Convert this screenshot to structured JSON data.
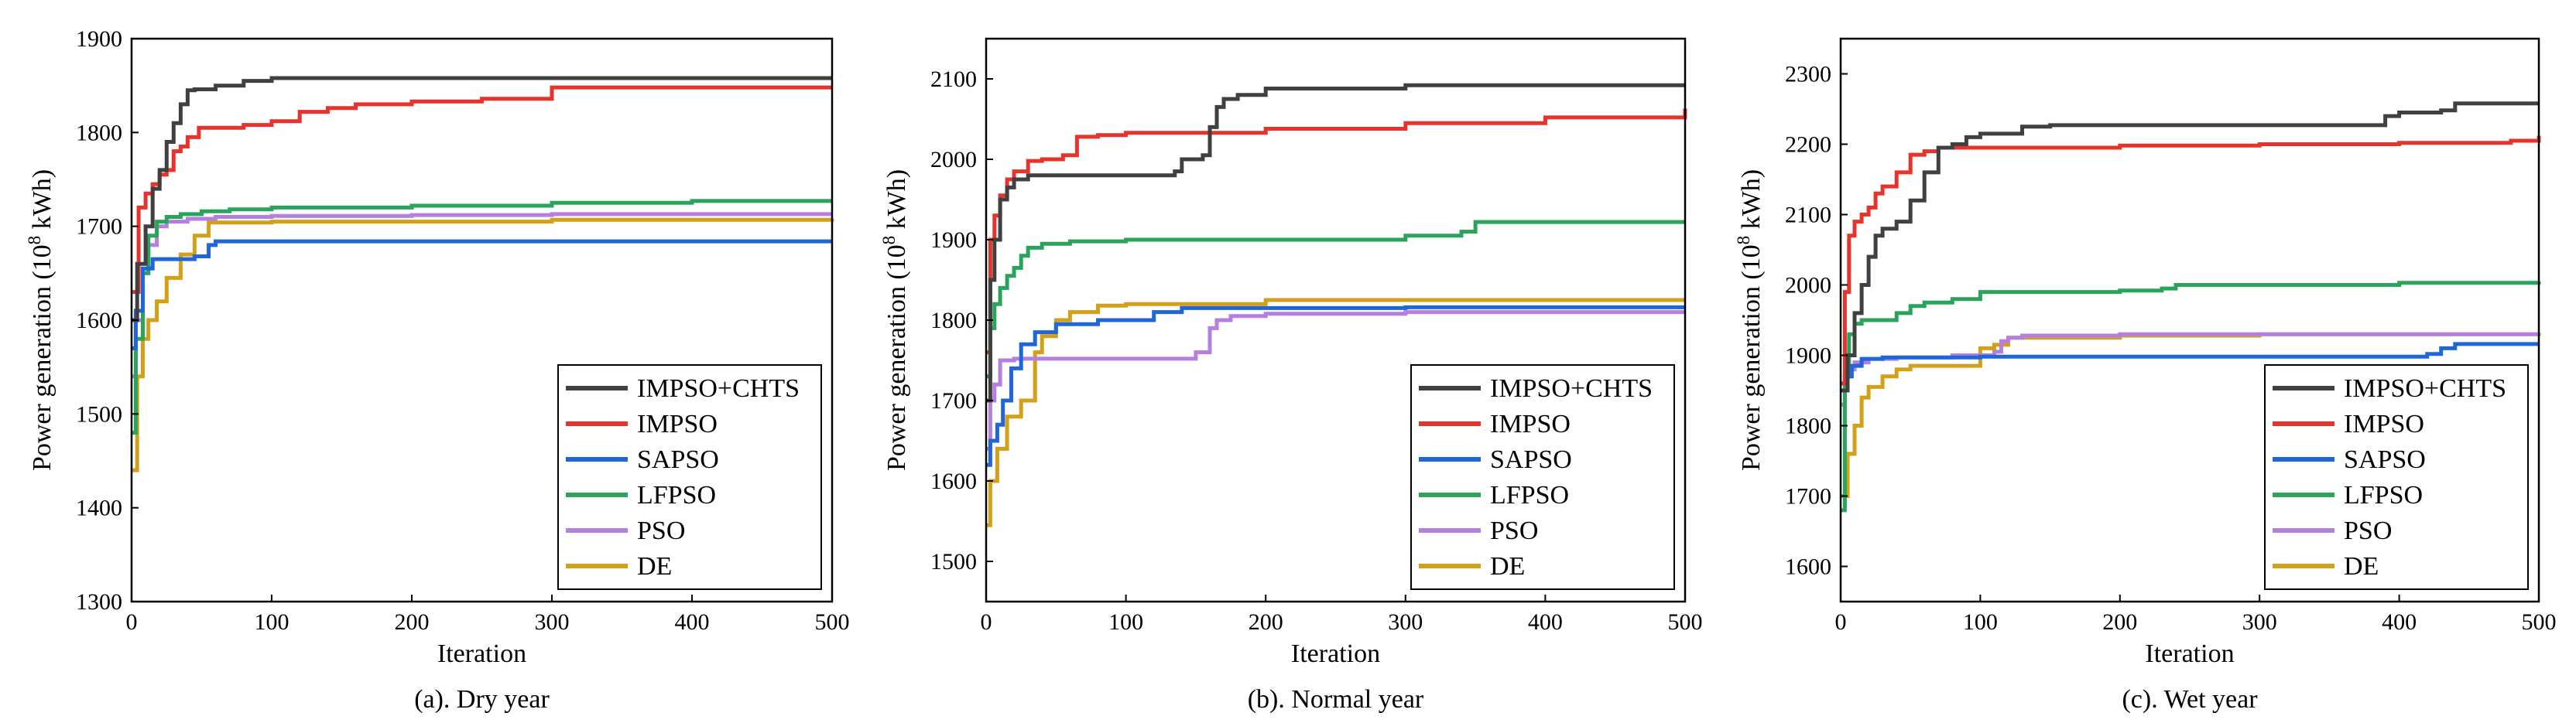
{
  "figure": {
    "colors": {
      "IMPSO+CHTS": "#404040",
      "IMPSO": "#e8322c",
      "SAPSO": "#1f66d8",
      "LFPSO": "#2aa35b",
      "PSO": "#b57fe0",
      "DE": "#d4a017"
    }
  },
  "chart_data": [
    {
      "type": "line",
      "title": "",
      "caption": "(a). Dry year",
      "xlabel": "Iteration",
      "ylabel_main": "Power generation (10",
      "ylabel_exp": "8",
      "ylabel_tail": " kWh)",
      "xlim": [
        0,
        500
      ],
      "ylim": [
        1300,
        1900
      ],
      "xticks": [
        "0",
        "100",
        "200",
        "300",
        "400",
        "500"
      ],
      "yticks": [
        "1300",
        "1400",
        "1500",
        "1600",
        "1700",
        "1800",
        "1900"
      ],
      "legend_position": "bottom-right",
      "series": [
        {
          "name": "IMPSO+CHTS",
          "x": [
            0,
            4,
            10,
            15,
            20,
            25,
            30,
            35,
            40,
            45,
            60,
            80,
            100,
            500
          ],
          "y": [
            1600,
            1660,
            1700,
            1740,
            1760,
            1790,
            1810,
            1830,
            1845,
            1846,
            1850,
            1855,
            1858,
            1858
          ]
        },
        {
          "name": "IMPSO",
          "x": [
            0,
            5,
            10,
            15,
            20,
            25,
            30,
            35,
            40,
            48,
            60,
            70,
            80,
            100,
            120,
            140,
            160,
            200,
            250,
            300,
            500
          ],
          "y": [
            1630,
            1720,
            1735,
            1745,
            1755,
            1760,
            1780,
            1785,
            1795,
            1805,
            1805,
            1805,
            1808,
            1812,
            1822,
            1826,
            1830,
            1833,
            1836,
            1848,
            1848
          ]
        },
        {
          "name": "SAPSO",
          "x": [
            0,
            3,
            8,
            15,
            30,
            45,
            55,
            60,
            500
          ],
          "y": [
            1570,
            1610,
            1655,
            1665,
            1665,
            1668,
            1680,
            1684,
            1684
          ]
        },
        {
          "name": "LFPSO",
          "x": [
            0,
            3,
            8,
            12,
            18,
            25,
            35,
            50,
            70,
            100,
            200,
            300,
            400,
            500
          ],
          "y": [
            1480,
            1580,
            1650,
            1690,
            1705,
            1710,
            1713,
            1716,
            1718,
            1720,
            1722,
            1725,
            1727,
            1727
          ]
        },
        {
          "name": "PSO",
          "x": [
            0,
            3,
            8,
            12,
            18,
            25,
            40,
            60,
            100,
            200,
            300,
            500
          ],
          "y": [
            1540,
            1600,
            1650,
            1680,
            1700,
            1705,
            1708,
            1710,
            1711,
            1712,
            1713,
            1713
          ]
        },
        {
          "name": "DE",
          "x": [
            0,
            4,
            8,
            12,
            18,
            25,
            35,
            45,
            55,
            100,
            200,
            300,
            500
          ],
          "y": [
            1440,
            1540,
            1580,
            1600,
            1620,
            1645,
            1670,
            1690,
            1704,
            1705,
            1705,
            1707,
            1708
          ]
        }
      ]
    },
    {
      "type": "line",
      "title": "",
      "caption": "(b). Normal year",
      "xlabel": "Iteration",
      "ylabel_main": "Power generation (10",
      "ylabel_exp": "8",
      "ylabel_tail": " kWh)",
      "xlim": [
        0,
        500
      ],
      "ylim": [
        1450,
        2150
      ],
      "xticks": [
        "0",
        "100",
        "200",
        "300",
        "400",
        "500"
      ],
      "yticks": [
        "1500",
        "1600",
        "1700",
        "1800",
        "1900",
        "2000",
        "2100"
      ],
      "legend_position": "bottom-right",
      "series": [
        {
          "name": "IMPSO+CHTS",
          "x": [
            0,
            3,
            6,
            10,
            15,
            20,
            30,
            50,
            100,
            135,
            140,
            155,
            160,
            165,
            170,
            180,
            200,
            300,
            500
          ],
          "y": [
            1700,
            1850,
            1900,
            1950,
            1965,
            1975,
            1980,
            1980,
            1980,
            1985,
            2000,
            2005,
            2040,
            2065,
            2075,
            2080,
            2088,
            2092,
            2092
          ]
        },
        {
          "name": "IMPSO",
          "x": [
            0,
            3,
            6,
            10,
            15,
            20,
            30,
            40,
            55,
            65,
            80,
            100,
            200,
            300,
            400,
            500
          ],
          "y": [
            1760,
            1900,
            1930,
            1955,
            1975,
            1985,
            1998,
            2000,
            2005,
            2028,
            2030,
            2033,
            2038,
            2045,
            2052,
            2063
          ]
        },
        {
          "name": "SAPSO",
          "x": [
            0,
            3,
            8,
            12,
            18,
            25,
            35,
            50,
            80,
            120,
            140,
            200,
            300,
            500
          ],
          "y": [
            1620,
            1650,
            1670,
            1700,
            1740,
            1770,
            1785,
            1795,
            1800,
            1810,
            1815,
            1815,
            1816,
            1816
          ]
        },
        {
          "name": "LFPSO",
          "x": [
            0,
            3,
            6,
            10,
            15,
            20,
            25,
            30,
            40,
            60,
            100,
            200,
            300,
            340,
            350,
            400,
            500
          ],
          "y": [
            1730,
            1790,
            1820,
            1840,
            1855,
            1865,
            1880,
            1890,
            1895,
            1898,
            1900,
            1900,
            1905,
            1910,
            1922,
            1922,
            1922
          ]
        },
        {
          "name": "PSO",
          "x": [
            0,
            3,
            6,
            10,
            20,
            60,
            100,
            150,
            160,
            165,
            175,
            200,
            300,
            500
          ],
          "y": [
            1640,
            1700,
            1720,
            1750,
            1752,
            1752,
            1752,
            1760,
            1790,
            1800,
            1805,
            1808,
            1810,
            1810
          ]
        },
        {
          "name": "DE",
          "x": [
            0,
            3,
            8,
            15,
            25,
            35,
            40,
            50,
            60,
            80,
            100,
            200,
            300,
            500
          ],
          "y": [
            1545,
            1600,
            1640,
            1680,
            1700,
            1760,
            1780,
            1800,
            1810,
            1818,
            1820,
            1825,
            1825,
            1825
          ]
        }
      ]
    },
    {
      "type": "line",
      "title": "",
      "caption": "(c). Wet year",
      "xlabel": "Iteration",
      "ylabel_main": "Power generation (10",
      "ylabel_exp": "8",
      "ylabel_tail": " kWh)",
      "xlim": [
        0,
        500
      ],
      "ylim": [
        1550,
        2350
      ],
      "xticks": [
        "0",
        "100",
        "200",
        "300",
        "400",
        "500"
      ],
      "yticks": [
        "1600",
        "1700",
        "1800",
        "1900",
        "2000",
        "2100",
        "2200",
        "2300"
      ],
      "legend_position": "bottom-right",
      "series": [
        {
          "name": "IMPSO+CHTS",
          "x": [
            0,
            5,
            10,
            15,
            20,
            25,
            30,
            40,
            50,
            60,
            70,
            80,
            90,
            100,
            130,
            150,
            200,
            300,
            380,
            390,
            400,
            430,
            440,
            500
          ],
          "y": [
            1850,
            1900,
            1960,
            2000,
            2040,
            2070,
            2080,
            2090,
            2120,
            2160,
            2195,
            2200,
            2210,
            2215,
            2225,
            2227,
            2227,
            2227,
            2227,
            2240,
            2245,
            2248,
            2258,
            2258
          ]
        },
        {
          "name": "IMPSO",
          "x": [
            0,
            3,
            6,
            10,
            15,
            20,
            25,
            30,
            40,
            50,
            60,
            70,
            100,
            200,
            300,
            400,
            480,
            500
          ],
          "y": [
            1860,
            1990,
            2070,
            2090,
            2100,
            2110,
            2130,
            2140,
            2160,
            2185,
            2190,
            2195,
            2195,
            2198,
            2200,
            2202,
            2205,
            2212
          ]
        },
        {
          "name": "SAPSO",
          "x": [
            0,
            3,
            8,
            15,
            30,
            100,
            200,
            300,
            400,
            420,
            430,
            440,
            500
          ],
          "y": [
            1860,
            1870,
            1885,
            1895,
            1897,
            1898,
            1898,
            1898,
            1898,
            1902,
            1910,
            1916,
            1916
          ]
        },
        {
          "name": "LFPSO",
          "x": [
            0,
            3,
            6,
            10,
            15,
            20,
            30,
            40,
            50,
            60,
            80,
            100,
            150,
            200,
            230,
            240,
            300,
            400,
            500
          ],
          "y": [
            1680,
            1870,
            1930,
            1945,
            1950,
            1950,
            1950,
            1960,
            1970,
            1975,
            1980,
            1990,
            1990,
            1992,
            1995,
            2000,
            2000,
            2003,
            2005
          ]
        },
        {
          "name": "PSO",
          "x": [
            0,
            3,
            6,
            10,
            20,
            40,
            80,
            110,
            115,
            120,
            130,
            200,
            300,
            500
          ],
          "y": [
            1830,
            1870,
            1880,
            1890,
            1895,
            1897,
            1900,
            1905,
            1920,
            1925,
            1928,
            1930,
            1930,
            1930
          ]
        },
        {
          "name": "DE",
          "x": [
            0,
            5,
            10,
            15,
            20,
            30,
            40,
            50,
            70,
            100,
            110,
            120,
            200,
            300,
            500
          ],
          "y": [
            1700,
            1760,
            1800,
            1840,
            1855,
            1870,
            1880,
            1885,
            1885,
            1910,
            1915,
            1925,
            1928,
            1930,
            1932
          ]
        }
      ]
    }
  ]
}
